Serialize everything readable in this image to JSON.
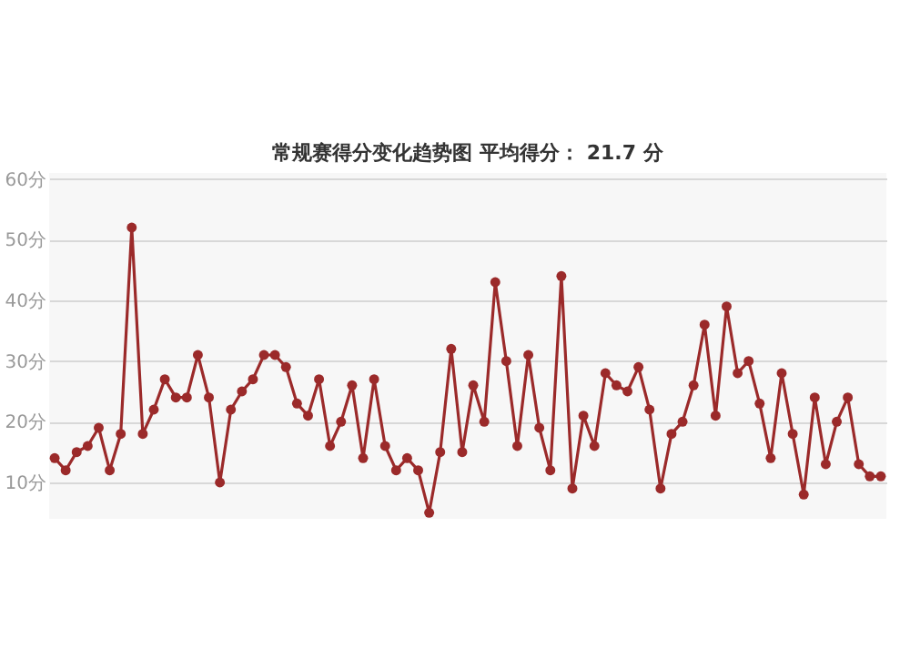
{
  "chart_data": {
    "type": "line",
    "title": "常规赛得分变化趋势图    平均得分：  21.7 分",
    "categories": [
      null,
      null,
      null,
      null,
      null,
      null,
      null,
      null,
      null,
      null,
      null,
      null,
      null,
      null,
      null,
      null,
      null,
      null,
      null,
      null,
      null,
      null,
      null,
      null,
      null,
      null,
      null,
      null,
      null,
      null,
      null,
      null,
      null,
      null,
      null,
      null,
      null,
      null,
      null,
      null,
      null,
      null,
      null,
      null,
      null,
      null,
      null,
      null,
      null,
      null,
      null,
      null,
      null,
      null,
      null,
      null,
      null,
      null,
      null,
      null,
      null,
      null,
      null,
      null,
      null,
      null,
      null,
      null,
      null,
      null,
      null,
      null,
      null,
      null,
      null,
      null
    ],
    "series": [
      {
        "color": "#9b2a2a",
        "values": [
          14,
          12,
          15,
          16,
          19,
          12,
          18,
          52,
          18,
          22,
          27,
          24,
          24,
          31,
          24,
          10,
          22,
          25,
          27,
          31,
          31,
          29,
          23,
          21,
          27,
          16,
          20,
          26,
          14,
          27,
          16,
          12,
          14,
          12,
          5,
          15,
          32,
          15,
          26,
          20,
          43,
          30,
          16,
          31,
          19,
          12,
          44,
          9,
          21,
          16,
          28,
          26,
          25,
          29,
          22,
          9,
          18,
          20,
          26,
          36,
          21,
          39,
          28,
          30,
          23,
          14,
          28,
          18,
          8,
          24,
          13,
          20,
          24,
          13,
          11,
          11
        ]
      }
    ],
    "ylim": [
      4,
      61
    ],
    "yticks": [
      {
        "value": 10,
        "label": "10分"
      },
      {
        "value": 20,
        "label": "20分"
      },
      {
        "value": 30,
        "label": "30分"
      },
      {
        "value": 40,
        "label": "40分"
      },
      {
        "value": 50,
        "label": "50分"
      },
      {
        "value": 60,
        "label": "60分"
      }
    ],
    "tick_labels": "y",
    "grid": "y",
    "marker": "circle",
    "line_style": "solid"
  }
}
